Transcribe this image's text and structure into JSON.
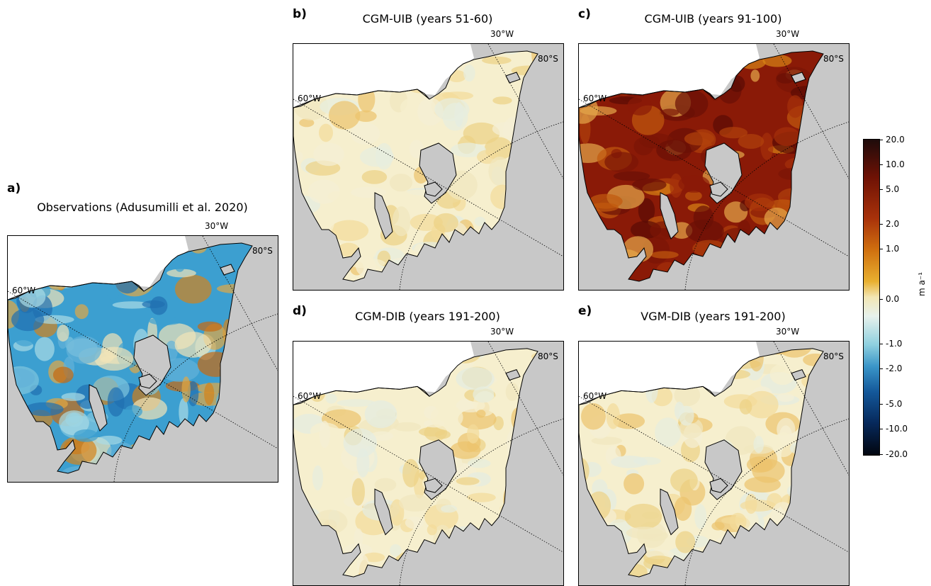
{
  "panels": [
    {
      "letter": "a)",
      "title": "Observations (Adusumilli et al. 2020)",
      "lon1": "60°W",
      "lon2": "30°W",
      "lat": "80°S",
      "style": "obs"
    },
    {
      "letter": "b)",
      "title": "CGM-UIB (years 51-60)",
      "lon1": "60°W",
      "lon2": "30°W",
      "lat": "80°S",
      "style": "light"
    },
    {
      "letter": "c)",
      "title": "CGM-UIB (years 91-100)",
      "lon1": "60°W",
      "lon2": "30°W",
      "lat": "80°S",
      "style": "dark"
    },
    {
      "letter": "d)",
      "title": "CGM-DIB (years 191-200)",
      "lon1": "60°W",
      "lon2": "30°W",
      "lat": "80°S",
      "style": "light"
    },
    {
      "letter": "e)",
      "title": "VGM-DIB (years 191-200)",
      "lon1": "60°W",
      "lon2": "30°W",
      "lat": "80°S",
      "style": "light"
    }
  ],
  "colorbar": {
    "ticks": [
      "20.0",
      "10.0",
      "5.0",
      "2.0",
      "1.0",
      "0.0",
      "-1.0",
      "-2.0",
      "-5.0",
      "-10.0",
      "-20.0"
    ],
    "unit": "m a⁻¹"
  },
  "colors": {
    "land": "#c8c8c8",
    "ocean": "#ffffff",
    "melt_light": "#f4ecc8",
    "melt_dark": "#7a1306",
    "freeze": "#3aa0cf"
  }
}
